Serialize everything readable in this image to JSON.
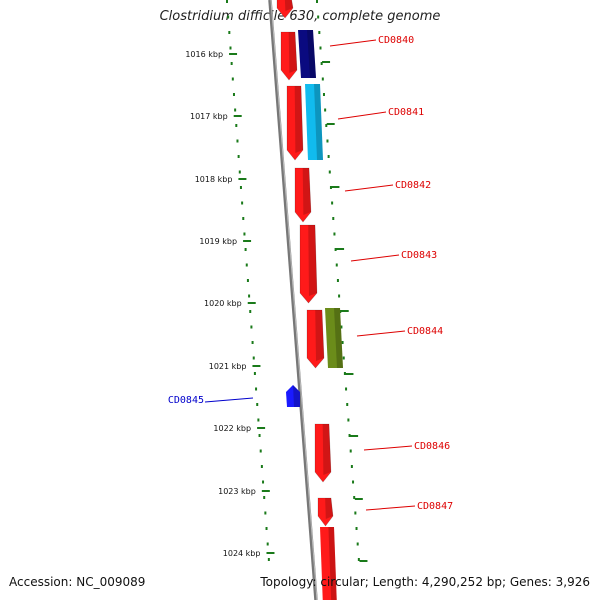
{
  "title": "Clostridium difficile 630, complete genome",
  "accession": "Accession: NC_009089",
  "stats": "Topology: circular; Length: 4,290,252 bp; Genes: 3,926",
  "colors": {
    "forward_cds": "#ff1a1a",
    "reverse_cds_red": "#ff1a1a",
    "label_red": "#dd0000",
    "label_blue": "#0000cc",
    "ruler": "#1a7a1a",
    "backbone": "#888888"
  },
  "ticks": [
    "1016 kbp",
    "1017 kbp",
    "1018 kbp",
    "1019 kbp",
    "1020 kbp",
    "1021 kbp",
    "1022 kbp",
    "1023 kbp",
    "1024 kbp"
  ],
  "genes": [
    {
      "name": "CD0840",
      "color": "#0a0a80",
      "strand": "reverse"
    },
    {
      "name": "CD0841",
      "color": "#11bbee",
      "strand": "reverse"
    },
    {
      "name": "CD0842",
      "color": "#ff1a1a",
      "strand": "forward"
    },
    {
      "name": "CD0843",
      "color": "#ff1a1a",
      "strand": "forward"
    },
    {
      "name": "CD0844",
      "color": "#6b8c1a",
      "strand": "reverse"
    },
    {
      "name": "CD0845",
      "color": "#1a1aff",
      "strand": "forward"
    },
    {
      "name": "CD0846",
      "color": "#ff1a1a",
      "strand": "forward"
    },
    {
      "name": "CD0847",
      "color": "#ff1a1a",
      "strand": "forward"
    }
  ]
}
